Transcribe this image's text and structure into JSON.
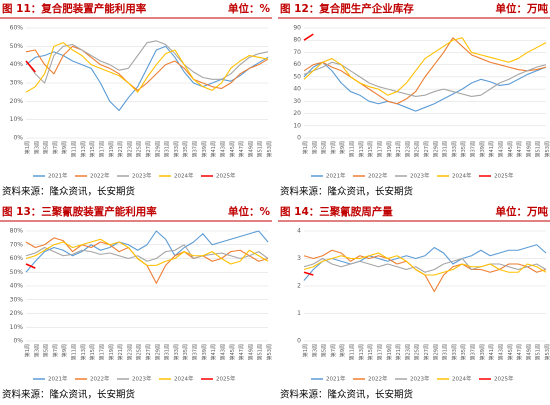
{
  "chart_data": [
    {
      "type": "line",
      "title": "图 11：复合肥装置产能利用率",
      "unit": "单位：%",
      "source": "资料来源：隆众资讯，长安期货",
      "categories": [
        "第1周",
        "第3周",
        "第5周",
        "第7周",
        "第9周",
        "第11周",
        "第13周",
        "第15周",
        "第17周",
        "第19周",
        "第21周",
        "第23周",
        "第25周",
        "第27周",
        "第29周",
        "第31周",
        "第33周",
        "第35周",
        "第37周",
        "第39周",
        "第41周",
        "第43周",
        "第45周",
        "第47周",
        "第49周",
        "第51周",
        "第53周"
      ],
      "ylim": [
        0,
        60
      ],
      "yticks": [
        {
          "value": 0,
          "label": "0%"
        },
        {
          "value": 10,
          "label": "10%"
        },
        {
          "value": 20,
          "label": "20%"
        },
        {
          "value": 30,
          "label": "30%"
        },
        {
          "value": 40,
          "label": "40%"
        },
        {
          "value": 50,
          "label": "50%"
        },
        {
          "value": 60,
          "label": "60%"
        }
      ],
      "series": [
        {
          "name": "2021年",
          "color": "#5b9bd5",
          "values": [
            40,
            44,
            45,
            47,
            45,
            42,
            40,
            38,
            30,
            20,
            15,
            22,
            28,
            38,
            48,
            50,
            44,
            36,
            30,
            28,
            30,
            32,
            31,
            34,
            38,
            41,
            44
          ]
        },
        {
          "name": "2022年",
          "color": "#ed7d31",
          "values": [
            47,
            48,
            40,
            35,
            45,
            50,
            48,
            44,
            40,
            38,
            35,
            30,
            26,
            30,
            35,
            40,
            42,
            38,
            32,
            30,
            28,
            27,
            30,
            35,
            38,
            40,
            43
          ]
        },
        {
          "name": "2023年",
          "color": "#a5a5a5",
          "values": [
            42,
            35,
            30,
            45,
            50,
            51,
            48,
            45,
            42,
            40,
            37,
            38,
            45,
            52,
            53,
            51,
            46,
            40,
            36,
            33,
            32,
            32,
            35,
            40,
            44,
            46,
            47
          ]
        },
        {
          "name": "2024年",
          "color": "#ffc000",
          "values": [
            25,
            28,
            35,
            50,
            52,
            48,
            45,
            40,
            38,
            36,
            34,
            30,
            25,
            33,
            40,
            46,
            48,
            40,
            32,
            28,
            26,
            30,
            38,
            42,
            45,
            44,
            43
          ]
        },
        {
          "name": "2025年",
          "color": "#ff0000",
          "values": [
            42,
            36,
            null,
            null,
            null,
            null,
            null,
            null,
            null,
            null,
            null,
            null,
            null,
            null,
            null,
            null,
            null,
            null,
            null,
            null,
            null,
            null,
            null,
            null,
            null,
            null,
            null
          ]
        }
      ]
    },
    {
      "type": "line",
      "title": "图 12：复合肥生产企业库存",
      "unit": "单位：万吨",
      "source": "资料来源：隆众资讯，长安期货",
      "categories": [
        "第1周",
        "第3周",
        "第5周",
        "第7周",
        "第9周",
        "第11周",
        "第13周",
        "第15周",
        "第17周",
        "第19周",
        "第21周",
        "第23周",
        "第25周",
        "第27周",
        "第29周",
        "第31周",
        "第33周",
        "第35周",
        "第37周",
        "第39周",
        "第41周",
        "第43周",
        "第45周",
        "第47周",
        "第49周",
        "第51周",
        "第53周"
      ],
      "ylim": [
        0,
        90
      ],
      "yticks": [
        0,
        10,
        20,
        30,
        40,
        50,
        60,
        70,
        80,
        90
      ],
      "series": [
        {
          "name": "2021年",
          "color": "#5b9bd5",
          "values": [
            50,
            58,
            62,
            55,
            45,
            38,
            35,
            30,
            28,
            30,
            28,
            25,
            22,
            25,
            28,
            32,
            36,
            40,
            45,
            48,
            46,
            43,
            44,
            48,
            52,
            55,
            58
          ]
        },
        {
          "name": "2022年",
          "color": "#ed7d31",
          "values": [
            55,
            60,
            62,
            58,
            55,
            50,
            45,
            40,
            35,
            30,
            28,
            32,
            38,
            50,
            60,
            70,
            82,
            75,
            68,
            65,
            62,
            60,
            58,
            56,
            55,
            56,
            58
          ]
        },
        {
          "name": "2023年",
          "color": "#a5a5a5",
          "values": [
            52,
            55,
            58,
            62,
            60,
            55,
            50,
            45,
            42,
            40,
            38,
            36,
            34,
            35,
            38,
            40,
            38,
            36,
            34,
            35,
            40,
            45,
            48,
            52,
            55,
            58,
            60
          ]
        },
        {
          "name": "2024年",
          "color": "#ffc000",
          "values": [
            48,
            55,
            62,
            65,
            60,
            50,
            45,
            42,
            40,
            35,
            38,
            45,
            55,
            65,
            70,
            75,
            80,
            82,
            70,
            68,
            66,
            64,
            62,
            65,
            70,
            74,
            78
          ]
        },
        {
          "name": "2025年",
          "color": "#ff0000",
          "values": [
            80,
            85,
            null,
            null,
            null,
            null,
            null,
            null,
            null,
            null,
            null,
            null,
            null,
            null,
            null,
            null,
            null,
            null,
            null,
            null,
            null,
            null,
            null,
            null,
            null,
            null,
            null
          ]
        }
      ]
    },
    {
      "type": "line",
      "title": "图 13：三聚氰胺装置产能利用率",
      "unit": "单位：%",
      "source": "资料来源：隆众资讯，长安期货",
      "categories": [
        "第1周",
        "第3周",
        "第5周",
        "第7周",
        "第9周",
        "第11周",
        "第13周",
        "第15周",
        "第17周",
        "第19周",
        "第21周",
        "第23周",
        "第25周",
        "第27周",
        "第29周",
        "第31周",
        "第33周",
        "第35周",
        "第37周",
        "第39周",
        "第41周",
        "第43周",
        "第45周",
        "第47周",
        "第49周",
        "第51周",
        "第53周"
      ],
      "ylim": [
        0,
        80
      ],
      "yticks": [
        {
          "value": 0,
          "label": "0%"
        },
        {
          "value": 10,
          "label": "10%"
        },
        {
          "value": 20,
          "label": "20%"
        },
        {
          "value": 30,
          "label": "30%"
        },
        {
          "value": 40,
          "label": "40%"
        },
        {
          "value": 50,
          "label": "50%"
        },
        {
          "value": 60,
          "label": "60%"
        },
        {
          "value": 70,
          "label": "70%"
        },
        {
          "value": 80,
          "label": "80%"
        }
      ],
      "series": [
        {
          "name": "2021年",
          "color": "#5b9bd5",
          "values": [
            50,
            58,
            65,
            68,
            66,
            62,
            65,
            70,
            66,
            68,
            72,
            70,
            66,
            70,
            80,
            74,
            62,
            68,
            72,
            78,
            70,
            72,
            74,
            76,
            78,
            80,
            72
          ]
        },
        {
          "name": "2022年",
          "color": "#ed7d31",
          "values": [
            72,
            68,
            70,
            75,
            73,
            65,
            70,
            68,
            72,
            70,
            65,
            68,
            60,
            55,
            42,
            55,
            62,
            65,
            60,
            62,
            58,
            60,
            65,
            66,
            62,
            58,
            60
          ]
        },
        {
          "name": "2023年",
          "color": "#a5a5a5",
          "values": [
            62,
            64,
            68,
            65,
            62,
            63,
            66,
            65,
            63,
            64,
            62,
            60,
            62,
            58,
            60,
            65,
            66,
            70,
            60,
            62,
            63,
            64,
            62,
            60,
            62,
            65,
            60
          ]
        },
        {
          "name": "2024年",
          "color": "#ffc000",
          "values": [
            60,
            62,
            66,
            70,
            72,
            68,
            70,
            72,
            74,
            70,
            72,
            68,
            60,
            55,
            55,
            58,
            60,
            65,
            62,
            62,
            65,
            60,
            56,
            58,
            66,
            62,
            58
          ]
        },
        {
          "name": "2025年",
          "color": "#ff0000",
          "values": [
            56,
            53,
            null,
            null,
            null,
            null,
            null,
            null,
            null,
            null,
            null,
            null,
            null,
            null,
            null,
            null,
            null,
            null,
            null,
            null,
            null,
            null,
            null,
            null,
            null,
            null,
            null
          ]
        }
      ]
    },
    {
      "type": "line",
      "title": "图 14：三聚氰胺周产量",
      "unit": "单位：万吨",
      "source": "资料来源：隆众资讯，长安期货",
      "categories": [
        "第1周",
        "第3周",
        "第5周",
        "第7周",
        "第9周",
        "第11周",
        "第13周",
        "第15周",
        "第17周",
        "第19周",
        "第21周",
        "第23周",
        "第25周",
        "第27周",
        "第29周",
        "第31周",
        "第33周",
        "第35周",
        "第37周",
        "第39周",
        "第41周",
        "第43周",
        "第45周",
        "第47周",
        "第49周",
        "第51周",
        "第53周"
      ],
      "ylim": [
        0,
        4
      ],
      "yticks": [
        0,
        1,
        2,
        3,
        4
      ],
      "series": [
        {
          "name": "2021年",
          "color": "#5b9bd5",
          "values": [
            2.2,
            2.6,
            2.9,
            3.0,
            2.9,
            2.8,
            2.9,
            3.1,
            3.0,
            2.9,
            3.0,
            3.1,
            3.0,
            3.1,
            3.4,
            3.2,
            2.8,
            3.0,
            3.1,
            3.3,
            3.1,
            3.2,
            3.3,
            3.3,
            3.4,
            3.5,
            3.2
          ]
        },
        {
          "name": "2022年",
          "color": "#ed7d31",
          "values": [
            3.1,
            3.0,
            3.1,
            3.3,
            3.2,
            2.9,
            3.1,
            3.0,
            3.1,
            3.0,
            2.8,
            2.9,
            2.6,
            2.4,
            1.8,
            2.4,
            2.7,
            2.8,
            2.6,
            2.6,
            2.5,
            2.6,
            2.8,
            2.8,
            2.7,
            2.5,
            2.6
          ]
        },
        {
          "name": "2023年",
          "color": "#a5a5a5",
          "values": [
            2.7,
            2.8,
            3.0,
            2.8,
            2.7,
            2.8,
            2.9,
            2.8,
            2.7,
            2.8,
            2.7,
            2.6,
            2.7,
            2.5,
            2.6,
            2.8,
            2.9,
            3.0,
            2.6,
            2.7,
            2.8,
            2.8,
            2.7,
            2.6,
            2.7,
            2.8,
            2.6
          ]
        },
        {
          "name": "2024年",
          "color": "#ffc000",
          "values": [
            2.6,
            2.7,
            2.9,
            3.0,
            3.1,
            3.0,
            3.0,
            3.1,
            3.2,
            3.0,
            3.1,
            2.9,
            2.6,
            2.4,
            2.4,
            2.5,
            2.6,
            2.8,
            2.7,
            2.7,
            2.8,
            2.6,
            2.5,
            2.5,
            2.8,
            2.7,
            2.5
          ]
        },
        {
          "name": "2025年",
          "color": "#ff0000",
          "values": [
            2.5,
            2.4,
            null,
            null,
            null,
            null,
            null,
            null,
            null,
            null,
            null,
            null,
            null,
            null,
            null,
            null,
            null,
            null,
            null,
            null,
            null,
            null,
            null,
            null,
            null,
            null,
            null
          ]
        }
      ]
    }
  ]
}
